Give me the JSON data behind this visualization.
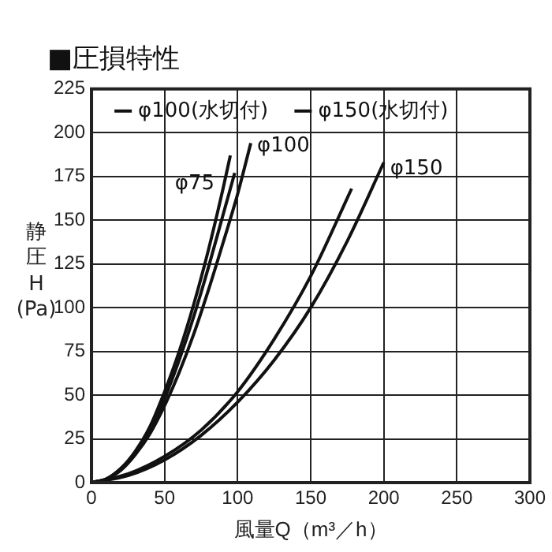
{
  "chart_data": {
    "type": "line",
    "title": "■圧損特性",
    "xlabel": "風量Q（m³／h）",
    "ylabel": "静圧H(Pa)",
    "xlim": [
      0,
      300
    ],
    "xticks": [
      0,
      50,
      100,
      150,
      200,
      250,
      300
    ],
    "ylim": [
      0,
      225
    ],
    "yticks": [
      0,
      25,
      50,
      75,
      100,
      125,
      150,
      175,
      200,
      225
    ],
    "grid": true,
    "legend": "top",
    "marker": "none",
    "line_style": "solid",
    "series": [
      {
        "name": "φ75",
        "color": "#111111",
        "x": [
          0,
          10,
          20,
          30,
          40,
          50,
          60,
          70,
          80,
          90,
          95
        ],
        "values": [
          0,
          2,
          8,
          18,
          32,
          52,
          75,
          102,
          133,
          168,
          187
        ]
      },
      {
        "name": "φ100(水切付)",
        "color": "#111111",
        "x": [
          0,
          10,
          20,
          30,
          40,
          50,
          60,
          70,
          80,
          90,
          98
        ],
        "values": [
          0,
          2,
          8,
          17,
          30,
          48,
          70,
          95,
          123,
          153,
          177
        ]
      },
      {
        "name": "φ100",
        "color": "#111111",
        "x": [
          0,
          10,
          20,
          30,
          40,
          50,
          60,
          70,
          80,
          90,
          100,
          109
        ],
        "values": [
          0,
          2,
          7,
          16,
          28,
          44,
          63,
          85,
          110,
          137,
          165,
          194
        ]
      },
      {
        "name": "φ150(水切付)",
        "color": "#111111",
        "x": [
          0,
          25,
          50,
          75,
          100,
          125,
          150,
          178
        ],
        "values": [
          0,
          5,
          15,
          30,
          52,
          82,
          118,
          168
        ]
      },
      {
        "name": "φ150",
        "color": "#111111",
        "x": [
          0,
          25,
          50,
          75,
          100,
          125,
          150,
          175,
          200
        ],
        "values": [
          0,
          4,
          13,
          27,
          46,
          70,
          100,
          138,
          183
        ]
      }
    ]
  }
}
